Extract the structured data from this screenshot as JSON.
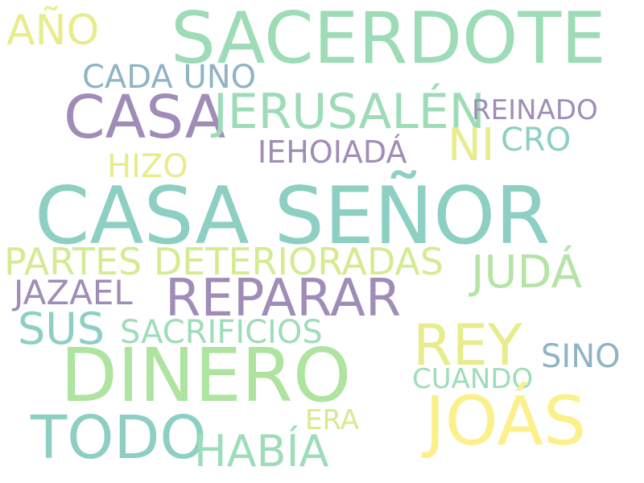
{
  "palette": {
    "green": "#9ddcb6",
    "teal": "#8ecfc4",
    "purple": "#a08db7",
    "yellow": "#e8ec8c",
    "light_yellow": "#fbf08a",
    "lime": "#bde59a",
    "blue_grey": "#8fb4c4",
    "mint": "#9fdcb8"
  },
  "words": [
    {
      "text": "SACERDOTE",
      "color": "#9ddcb6"
    },
    {
      "text": "AÑO",
      "color": "#e8ec8c"
    },
    {
      "text": "CADA UNO",
      "color": "#8fb4c4"
    },
    {
      "text": "CASA",
      "color": "#a08db7"
    },
    {
      "text": "JERUSALÉN",
      "color": "#9ddcb6"
    },
    {
      "text": "REINADO",
      "color": "#a08db7"
    },
    {
      "text": "NI",
      "color": "#e8ec8c"
    },
    {
      "text": "CRO",
      "color": "#8ecfc4"
    },
    {
      "text": "IEHOIADÁ",
      "color": "#a08db7"
    },
    {
      "text": "HIZO",
      "color": "#e8ec8c"
    },
    {
      "text": "CASA SEÑOR",
      "color": "#8ecfc4"
    },
    {
      "text": "PARTES DETERIORADAS",
      "color": "#d4eb92"
    },
    {
      "text": "JUDÁ",
      "color": "#b5e4a6"
    },
    {
      "text": "JAZAEL",
      "color": "#a08db7"
    },
    {
      "text": "REPARAR",
      "color": "#a08db7"
    },
    {
      "text": "SUS",
      "color": "#8ecfc4"
    },
    {
      "text": "SACRIFICIOS",
      "color": "#9fdcb8"
    },
    {
      "text": "REY",
      "color": "#e8ec8c"
    },
    {
      "text": "SINO",
      "color": "#8fb4c4"
    },
    {
      "text": "DINERO",
      "color": "#aee3a0"
    },
    {
      "text": "CUANDO",
      "color": "#9fdcb8"
    },
    {
      "text": "ERA",
      "color": "#d4eb92"
    },
    {
      "text": "TODO",
      "color": "#8ecfc4"
    },
    {
      "text": "JOÁS",
      "color": "#fbf08a"
    },
    {
      "text": "HABÍA",
      "color": "#9fdcb8"
    }
  ]
}
